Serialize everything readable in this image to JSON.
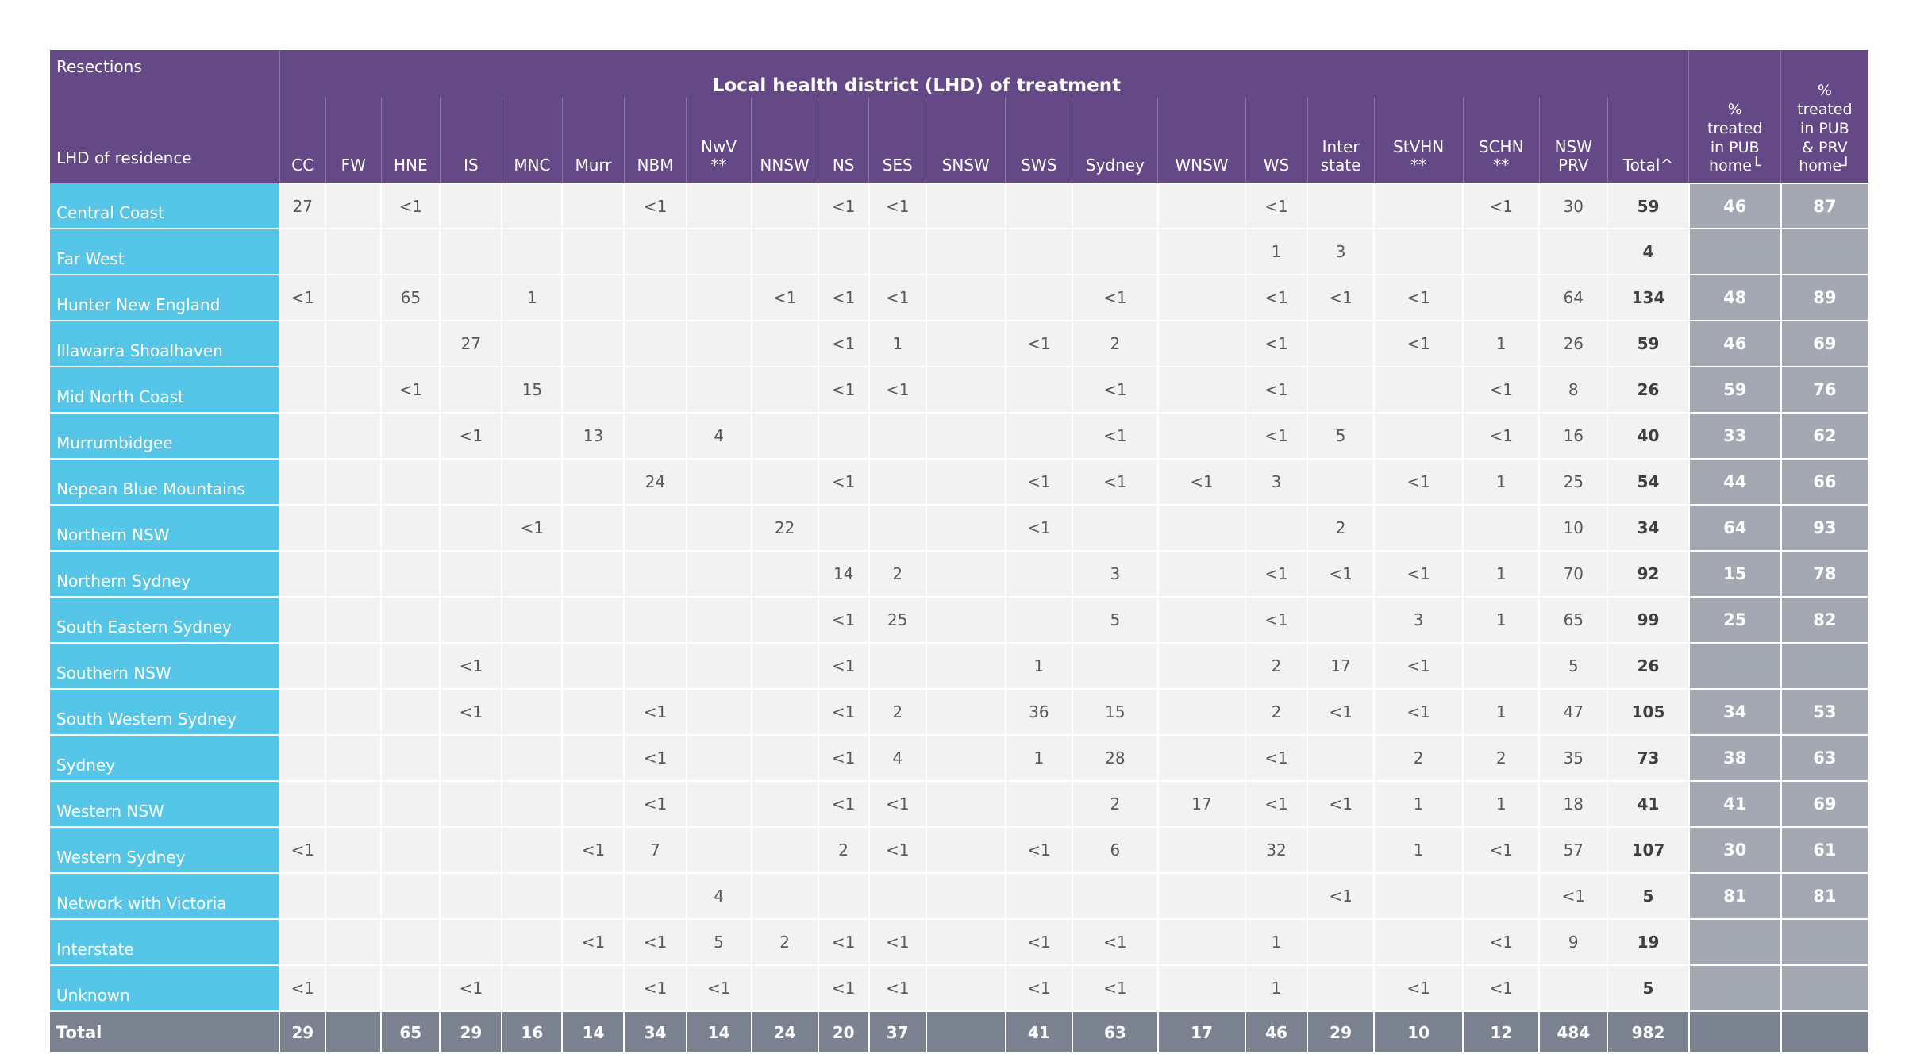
{
  "chart_data": {
    "type": "table",
    "title": "Local health district (LHD) of treatment",
    "corner_top": "Resections",
    "corner_bottom": "LHD of residence",
    "pct_headers": [
      "%\ntreated\nin PUB\nhome└",
      "%\ntreated\nin PUB\n& PRV\nhome┘"
    ],
    "column_keys": [
      "CC",
      "FW",
      "HNE",
      "IS",
      "MNC",
      "Murr",
      "NBM",
      "NwV",
      "NNSW",
      "NS",
      "SES",
      "SNSW",
      "SWS",
      "Sydney",
      "WNSW",
      "WS",
      "Interstate",
      "StVHN",
      "SCHN",
      "NSWPRV",
      "Total"
    ],
    "columns": [
      "CC",
      "FW",
      "HNE",
      "IS",
      "MNC",
      "Murr",
      "NBM",
      "NwV\n**",
      "NNSW",
      "NS",
      "SES",
      "SNSW",
      "SWS",
      "Sydney",
      "WNSW",
      "WS",
      "Inter\nstate",
      "StVHN\n**",
      "SCHN\n**",
      "NSW\nPRV",
      "Total^"
    ],
    "rows": [
      {
        "label": "Central Coast",
        "values": [
          "27",
          "",
          "<1",
          "",
          "",
          "",
          "<1",
          "",
          "",
          "<1",
          "<1",
          "",
          "",
          "",
          "",
          "<1",
          "",
          "",
          "<1",
          "30",
          "59"
        ],
        "pct": [
          "46",
          "87"
        ]
      },
      {
        "label": "Far West",
        "values": [
          "",
          "",
          "",
          "",
          "",
          "",
          "",
          "",
          "",
          "",
          "",
          "",
          "",
          "",
          "",
          "1",
          "3",
          "",
          "",
          "",
          "4"
        ],
        "pct": [
          "",
          ""
        ]
      },
      {
        "label": "Hunter New England",
        "values": [
          "<1",
          "",
          "65",
          "",
          "1",
          "",
          "",
          "",
          "<1",
          "<1",
          "<1",
          "",
          "",
          "<1",
          "",
          "<1",
          "<1",
          "<1",
          "",
          "64",
          "134"
        ],
        "pct": [
          "48",
          "89"
        ]
      },
      {
        "label": "Illawarra Shoalhaven",
        "values": [
          "",
          "",
          "",
          "27",
          "",
          "",
          "",
          "",
          "",
          "<1",
          "1",
          "",
          "<1",
          "2",
          "",
          "<1",
          "",
          "<1",
          "1",
          "26",
          "59"
        ],
        "pct": [
          "46",
          "69"
        ]
      },
      {
        "label": "Mid North Coast",
        "values": [
          "",
          "",
          "<1",
          "",
          "15",
          "",
          "",
          "",
          "",
          "<1",
          "<1",
          "",
          "",
          "<1",
          "",
          "<1",
          "",
          "",
          "<1",
          "8",
          "26"
        ],
        "pct": [
          "59",
          "76"
        ]
      },
      {
        "label": "Murrumbidgee",
        "values": [
          "",
          "",
          "",
          "<1",
          "",
          "13",
          "",
          "4",
          "",
          "",
          "",
          "",
          "",
          "<1",
          "",
          "<1",
          "5",
          "",
          "<1",
          "16",
          "40"
        ],
        "pct": [
          "33",
          "62"
        ]
      },
      {
        "label": "Nepean Blue Mountains",
        "values": [
          "",
          "",
          "",
          "",
          "",
          "",
          "24",
          "",
          "",
          "<1",
          "",
          "",
          "<1",
          "<1",
          "<1",
          "3",
          "",
          "<1",
          "1",
          "25",
          "54"
        ],
        "pct": [
          "44",
          "66"
        ]
      },
      {
        "label": "Northern NSW",
        "values": [
          "",
          "",
          "",
          "",
          "<1",
          "",
          "",
          "",
          "22",
          "",
          "",
          "",
          "<1",
          "",
          "",
          "",
          "2",
          "",
          "",
          "10",
          "34"
        ],
        "pct": [
          "64",
          "93"
        ]
      },
      {
        "label": "Northern Sydney",
        "values": [
          "",
          "",
          "",
          "",
          "",
          "",
          "",
          "",
          "",
          "14",
          "2",
          "",
          "",
          "3",
          "",
          "<1",
          "<1",
          "<1",
          "1",
          "70",
          "92"
        ],
        "pct": [
          "15",
          "78"
        ]
      },
      {
        "label": "South Eastern Sydney",
        "values": [
          "",
          "",
          "",
          "",
          "",
          "",
          "",
          "",
          "",
          "<1",
          "25",
          "",
          "",
          "5",
          "",
          "<1",
          "",
          "3",
          "1",
          "65",
          "99"
        ],
        "pct": [
          "25",
          "82"
        ]
      },
      {
        "label": "Southern NSW",
        "values": [
          "",
          "",
          "",
          "<1",
          "",
          "",
          "",
          "",
          "",
          "<1",
          "",
          "",
          "1",
          "",
          "",
          "2",
          "17",
          "<1",
          "",
          "5",
          "26"
        ],
        "pct": [
          "",
          ""
        ]
      },
      {
        "label": "South Western Sydney",
        "values": [
          "",
          "",
          "",
          "<1",
          "",
          "",
          "<1",
          "",
          "",
          "<1",
          "2",
          "",
          "36",
          "15",
          "",
          "2",
          "<1",
          "<1",
          "1",
          "47",
          "105"
        ],
        "pct": [
          "34",
          "53"
        ]
      },
      {
        "label": "Sydney",
        "values": [
          "",
          "",
          "",
          "",
          "",
          "",
          "<1",
          "",
          "",
          "<1",
          "4",
          "",
          "1",
          "28",
          "",
          "<1",
          "",
          "2",
          "2",
          "35",
          "73"
        ],
        "pct": [
          "38",
          "63"
        ]
      },
      {
        "label": "Western NSW",
        "values": [
          "",
          "",
          "",
          "",
          "",
          "",
          "<1",
          "",
          "",
          "<1",
          "<1",
          "",
          "",
          "2",
          "17",
          "<1",
          "<1",
          "1",
          "1",
          "18",
          "41"
        ],
        "pct": [
          "41",
          "69"
        ]
      },
      {
        "label": "Western Sydney",
        "values": [
          "<1",
          "",
          "",
          "",
          "",
          "<1",
          "7",
          "",
          "",
          "2",
          "<1",
          "",
          "<1",
          "6",
          "",
          "32",
          "",
          "1",
          "<1",
          "57",
          "107"
        ],
        "pct": [
          "30",
          "61"
        ]
      },
      {
        "label": "Network with Victoria",
        "values": [
          "",
          "",
          "",
          "",
          "",
          "",
          "",
          "4",
          "",
          "",
          "",
          "",
          "",
          "",
          "",
          "",
          "<1",
          "",
          "",
          "<1",
          "5"
        ],
        "pct": [
          "81",
          "81"
        ]
      },
      {
        "label": "Interstate",
        "values": [
          "",
          "",
          "",
          "",
          "",
          "<1",
          "<1",
          "5",
          "2",
          "<1",
          "<1",
          "",
          "<1",
          "<1",
          "",
          "1",
          "",
          "",
          "<1",
          "9",
          "19"
        ],
        "pct": [
          "",
          ""
        ]
      },
      {
        "label": "Unknown",
        "values": [
          "<1",
          "",
          "",
          "<1",
          "",
          "",
          "<1",
          "<1",
          "",
          "<1",
          "<1",
          "",
          "<1",
          "<1",
          "",
          "1",
          "",
          "<1",
          "<1",
          "",
          "5"
        ],
        "pct": [
          "",
          ""
        ]
      }
    ],
    "total_row": {
      "label": "Total",
      "values": [
        "29",
        "",
        "65",
        "29",
        "16",
        "14",
        "34",
        "14",
        "24",
        "20",
        "37",
        "",
        "41",
        "63",
        "17",
        "46",
        "29",
        "10",
        "12",
        "484",
        "982"
      ],
      "pct": [
        "",
        ""
      ]
    }
  },
  "colors": {
    "header_purple": "#654987",
    "row_label_blue": "#55C6E8",
    "cell_bg": "#F2F2F2",
    "cell_text": "#595959",
    "pct_cell_bg": "#A4A8B2",
    "total_row_bg": "#7A8290",
    "gridline": "#FFFFFF"
  }
}
